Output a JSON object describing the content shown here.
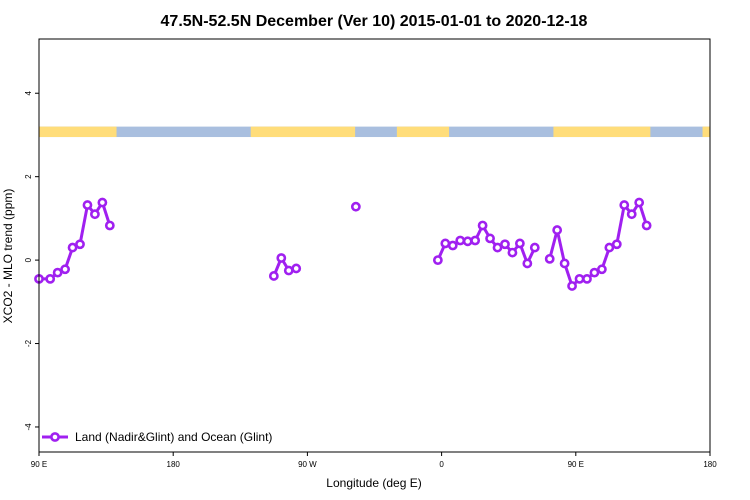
{
  "chart_data": {
    "type": "line",
    "title": "47.5N-52.5N December (Ver 10)   2015-01-01 to 2020-12-18",
    "xlabel": "Longitude (deg E)",
    "ylabel": "XCO2 - MLO trend (ppm)",
    "xlim": [
      90,
      540
    ],
    "ylim": [
      -4.6,
      5.3
    ],
    "x_ticks": [
      {
        "value": 90,
        "label": "90 E"
      },
      {
        "value": 180,
        "label": "180"
      },
      {
        "value": 270,
        "label": "90 W"
      },
      {
        "value": 360,
        "label": "0"
      },
      {
        "value": 450,
        "label": "90 E"
      },
      {
        "value": 540,
        "label": "180"
      }
    ],
    "y_ticks": [
      {
        "value": -4,
        "label": "-4"
      },
      {
        "value": -2,
        "label": "-2"
      },
      {
        "value": 0,
        "label": "0"
      },
      {
        "value": 2,
        "label": "2"
      },
      {
        "value": 4,
        "label": "4"
      }
    ],
    "land_ocean_bar": {
      "y_range": [
        2.95,
        3.2
      ],
      "land_color": "#ffdd7a",
      "ocean_color": "#a9bfdf",
      "land_segments": [
        [
          90,
          142
        ],
        [
          232,
          302
        ],
        [
          330,
          365
        ],
        [
          435,
          500
        ],
        [
          535,
          540
        ]
      ]
    },
    "series": [
      {
        "name": "Land (Nadir&Glint) and Ocean (Glint)",
        "color": "#a020f0",
        "segments": [
          [
            [
              90,
              -0.45
            ],
            [
              97.5,
              -0.45
            ],
            [
              102.5,
              -0.3
            ],
            [
              107.5,
              -0.22
            ],
            [
              112.5,
              0.3
            ],
            [
              117.5,
              0.38
            ],
            [
              122.5,
              1.32
            ],
            [
              127.5,
              1.1
            ],
            [
              132.5,
              1.38
            ],
            [
              137.5,
              0.83
            ]
          ],
          [
            [
              247.5,
              -0.38
            ],
            [
              252.5,
              0.05
            ],
            [
              257.5,
              -0.25
            ],
            [
              262.5,
              -0.2
            ]
          ],
          [
            [
              302.5,
              1.28
            ]
          ],
          [
            [
              357.5,
              0.0
            ],
            [
              362.5,
              0.4
            ],
            [
              367.5,
              0.35
            ],
            [
              372.5,
              0.47
            ],
            [
              377.5,
              0.45
            ],
            [
              382.5,
              0.47
            ],
            [
              387.5,
              0.83
            ],
            [
              392.5,
              0.52
            ],
            [
              397.5,
              0.3
            ],
            [
              402.5,
              0.38
            ],
            [
              407.5,
              0.18
            ],
            [
              412.5,
              0.4
            ],
            [
              417.5,
              -0.08
            ],
            [
              422.5,
              0.3
            ]
          ],
          [
            [
              432.5,
              0.03
            ],
            [
              437.5,
              0.72
            ],
            [
              442.5,
              -0.08
            ],
            [
              447.5,
              -0.62
            ],
            [
              452.5,
              -0.45
            ],
            [
              457.5,
              -0.45
            ],
            [
              462.5,
              -0.3
            ],
            [
              467.5,
              -0.22
            ],
            [
              472.5,
              0.3
            ],
            [
              477.5,
              0.38
            ],
            [
              482.5,
              1.32
            ],
            [
              487.5,
              1.1
            ],
            [
              492.5,
              1.38
            ],
            [
              497.5,
              0.83
            ]
          ]
        ]
      }
    ],
    "legend": {
      "position": "bottom-left",
      "entries": [
        "Land (Nadir&Glint) and Ocean (Glint)"
      ]
    },
    "grid": false
  }
}
